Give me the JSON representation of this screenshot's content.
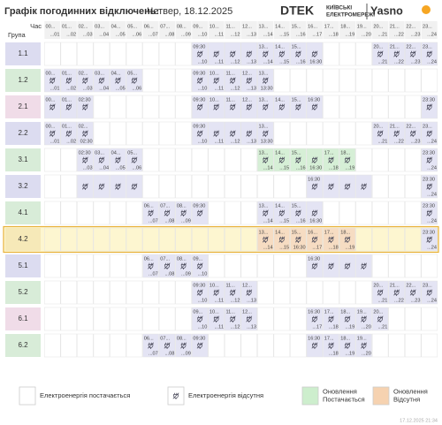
{
  "header": {
    "title": "Графік погодинних відключень:",
    "date": "Четвер, 18.12.2025",
    "brand": "DTEK",
    "brand_sub": [
      "КИЇВСЬКІ",
      "ЕЛЕКТРОМЕРЕЖІ"
    ],
    "brand2": "Yasno"
  },
  "table": {
    "corner_top": "Час",
    "corner_bottom": "Група",
    "kinds": {
      "off": "#e4e4f4",
      "on-upd": "#d6efd6",
      "off-upd": "#f6dcc2"
    },
    "hours": [
      [
        "00...",
        "...01"
      ],
      [
        "01...",
        "...02"
      ],
      [
        "02...",
        "...03"
      ],
      [
        "03...",
        "...04"
      ],
      [
        "04...",
        "...05"
      ],
      [
        "05...",
        "...06"
      ],
      [
        "06...",
        "...07"
      ],
      [
        "07...",
        "...08"
      ],
      [
        "08...",
        "...09"
      ],
      [
        "09...",
        "...10"
      ],
      [
        "10...",
        "...11"
      ],
      [
        "11...",
        "...12"
      ],
      [
        "12...",
        "...13"
      ],
      [
        "13...",
        "...14"
      ],
      [
        "14...",
        "...15"
      ],
      [
        "15...",
        "...16"
      ],
      [
        "16...",
        "...17"
      ],
      [
        "17...",
        "...18"
      ],
      [
        "18...",
        "...19"
      ],
      [
        "19...",
        "...20"
      ],
      [
        "20...",
        "...21"
      ],
      [
        "21...",
        "...22"
      ],
      [
        "22...",
        "...23"
      ],
      [
        "23...",
        "...24"
      ]
    ],
    "rows": [
      {
        "group": "1.1",
        "color": "#dcdcf0",
        "cells": {
          "9": {
            "t": "09:30",
            "b": "...10",
            "k": "off"
          },
          "10": {
            "b": "...11",
            "k": "off"
          },
          "11": {
            "b": "...12",
            "k": "off"
          },
          "12": {
            "b": "...13",
            "k": "off"
          },
          "13": {
            "t": "13...",
            "b": "...14",
            "k": "off"
          },
          "14": {
            "t": "14...",
            "b": "...15",
            "k": "off"
          },
          "15": {
            "t": "15...",
            "b": "...16",
            "k": "off"
          },
          "16": {
            "b": "16:30",
            "k": "off"
          },
          "20": {
            "t": "20...",
            "b": "...21",
            "k": "off"
          },
          "21": {
            "t": "21...",
            "b": "...22",
            "k": "off"
          },
          "22": {
            "t": "22...",
            "b": "...23",
            "k": "off"
          },
          "23": {
            "t": "23...",
            "b": "...24",
            "k": "off"
          }
        }
      },
      {
        "group": "1.2",
        "color": "#d8ecd8",
        "cells": {
          "0": {
            "t": "00...",
            "b": "...01",
            "k": "off"
          },
          "1": {
            "t": "01...",
            "b": "...02",
            "k": "off"
          },
          "2": {
            "t": "02...",
            "b": "...03",
            "k": "off"
          },
          "3": {
            "t": "03...",
            "b": "...04",
            "k": "off"
          },
          "4": {
            "t": "04...",
            "b": "...05",
            "k": "off"
          },
          "5": {
            "t": "05...",
            "b": "...06",
            "k": "off"
          },
          "9": {
            "t": "09:30",
            "b": "...10",
            "k": "off"
          },
          "10": {
            "t": "10...",
            "b": "...11",
            "k": "off"
          },
          "11": {
            "t": "11...",
            "b": "...12",
            "k": "off"
          },
          "12": {
            "t": "12...",
            "b": "...13",
            "k": "off"
          },
          "13": {
            "t": "13...",
            "b": "13:30",
            "k": "off"
          }
        }
      },
      {
        "group": "2.1",
        "color": "#f0dce8",
        "cells": {
          "0": {
            "t": "00...",
            "k": "off"
          },
          "1": {
            "t": "01...",
            "k": "off"
          },
          "2": {
            "t": "02:30",
            "k": "off"
          },
          "9": {
            "t": "09:30",
            "k": "off"
          },
          "10": {
            "t": "10...",
            "k": "off"
          },
          "11": {
            "t": "11...",
            "k": "off"
          },
          "12": {
            "t": "12...",
            "k": "off"
          },
          "13": {
            "t": "13...",
            "k": "off"
          },
          "14": {
            "t": "14...",
            "k": "off"
          },
          "15": {
            "t": "15...",
            "k": "off"
          },
          "16": {
            "t": "16:30",
            "k": "off"
          },
          "23": {
            "t": "23:30",
            "k": "off"
          }
        }
      },
      {
        "group": "2.2",
        "color": "#dcdcf0",
        "cells": {
          "0": {
            "t": "00...",
            "b": "...01",
            "k": "off"
          },
          "1": {
            "t": "01...",
            "b": "...02",
            "k": "off"
          },
          "2": {
            "t": "02...",
            "b": "02:30",
            "k": "off"
          },
          "9": {
            "t": "09:30",
            "b": "...10",
            "k": "off"
          },
          "10": {
            "b": "...11",
            "k": "off"
          },
          "11": {
            "b": "...12",
            "k": "off"
          },
          "12": {
            "b": "...13",
            "k": "off"
          },
          "13": {
            "t": "13...",
            "b": "13:30",
            "k": "off"
          },
          "20": {
            "t": "20...",
            "b": "...21",
            "k": "off"
          },
          "21": {
            "t": "21...",
            "b": "...22",
            "k": "off"
          },
          "22": {
            "t": "22...",
            "b": "...23",
            "k": "off"
          },
          "23": {
            "t": "23...",
            "b": "...24",
            "k": "off"
          }
        }
      },
      {
        "group": "3.1",
        "color": "#d8ecd8",
        "cells": {
          "2": {
            "t": "02:30",
            "b": "...03",
            "k": "off"
          },
          "3": {
            "t": "03...",
            "b": "...04",
            "k": "off"
          },
          "4": {
            "t": "04...",
            "b": "...05",
            "k": "off"
          },
          "5": {
            "t": "05...",
            "b": "...06",
            "k": "off"
          },
          "13": {
            "t": "13...",
            "b": "...14",
            "k": "on-upd"
          },
          "14": {
            "t": "14...",
            "b": "...15",
            "k": "on-upd"
          },
          "15": {
            "t": "15...",
            "b": "...16",
            "k": "on-upd"
          },
          "16": {
            "b": "16:30",
            "k": "on-upd"
          },
          "17": {
            "t": "17...",
            "b": "...18",
            "k": "on-upd"
          },
          "18": {
            "t": "18...",
            "b": "...19",
            "k": "on-upd"
          },
          "23": {
            "t": "23:30",
            "b": "...24",
            "k": "off"
          }
        }
      },
      {
        "group": "3.2",
        "color": "#dcdcf0",
        "cells": {
          "2": {
            "k": "off"
          },
          "3": {
            "k": "off"
          },
          "4": {
            "k": "off"
          },
          "5": {
            "k": "off"
          },
          "16": {
            "t": "16:30",
            "k": "off"
          },
          "17": {
            "k": "off"
          },
          "18": {
            "k": "off"
          },
          "19": {
            "k": "off"
          },
          "23": {
            "t": "23:30",
            "b": "...24",
            "k": "off"
          }
        }
      },
      {
        "group": "4.1",
        "color": "#d8ecd8",
        "cells": {
          "6": {
            "t": "06...",
            "b": "...07",
            "k": "off"
          },
          "7": {
            "t": "07...",
            "b": "...08",
            "k": "off"
          },
          "8": {
            "t": "08...",
            "b": "...09",
            "k": "off"
          },
          "9": {
            "t": "09:30",
            "k": "off"
          },
          "13": {
            "t": "13...",
            "b": "...14",
            "k": "off"
          },
          "14": {
            "t": "14...",
            "b": "...15",
            "k": "off"
          },
          "15": {
            "t": "15...",
            "b": "...16",
            "k": "off"
          },
          "16": {
            "b": "16:30",
            "k": "off"
          },
          "23": {
            "t": "23:30",
            "b": "...24",
            "k": "off"
          }
        }
      },
      {
        "group": "4.2",
        "color": "#f6e9b8",
        "selected": true,
        "cells": {
          "13": {
            "t": "13...",
            "b": "...14",
            "k": "off-upd"
          },
          "14": {
            "t": "14...",
            "b": "...15",
            "k": "off-upd"
          },
          "15": {
            "t": "15...",
            "b": "16:30",
            "k": "off-upd"
          },
          "16": {
            "t": "16...",
            "b": "...17",
            "k": "off-upd"
          },
          "17": {
            "t": "17...",
            "b": "...18",
            "k": "off-upd"
          },
          "18": {
            "t": "18...",
            "b": "...19",
            "k": "off-upd"
          },
          "23": {
            "t": "23:30",
            "b": "...24",
            "k": "off"
          }
        }
      },
      {
        "group": "5.1",
        "color": "#dcdcf0",
        "cells": {
          "6": {
            "t": "06...",
            "b": "...07",
            "k": "off"
          },
          "7": {
            "t": "07...",
            "b": "...08",
            "k": "off"
          },
          "8": {
            "t": "08...",
            "b": "...09",
            "k": "off"
          },
          "9": {
            "t": "09...",
            "b": "...10",
            "k": "off"
          },
          "16": {
            "t": "16:30",
            "k": "off"
          },
          "17": {
            "k": "off"
          },
          "18": {
            "k": "off"
          },
          "19": {
            "k": "off"
          }
        }
      },
      {
        "group": "5.2",
        "color": "#d8ecd8",
        "cells": {
          "9": {
            "t": "09:30",
            "b": "...10",
            "k": "off"
          },
          "10": {
            "t": "10...",
            "b": "...11",
            "k": "off"
          },
          "11": {
            "t": "11...",
            "b": "...12",
            "k": "off"
          },
          "12": {
            "t": "12...",
            "b": "...13",
            "k": "off"
          },
          "20": {
            "t": "20...",
            "b": "...21",
            "k": "off"
          },
          "21": {
            "t": "21...",
            "b": "...22",
            "k": "off"
          },
          "22": {
            "t": "22...",
            "b": "...23",
            "k": "off"
          },
          "23": {
            "t": "23...",
            "b": "...24",
            "k": "off"
          }
        }
      },
      {
        "group": "6.1",
        "color": "#f0dce8",
        "cells": {
          "9": {
            "t": "09...",
            "b": "...10",
            "k": "off"
          },
          "10": {
            "t": "10...",
            "b": "...11",
            "k": "off"
          },
          "11": {
            "t": "11...",
            "b": "...12",
            "k": "off"
          },
          "12": {
            "t": "12...",
            "b": "...13",
            "k": "off"
          },
          "16": {
            "t": "16:30",
            "b": "...17",
            "k": "off"
          },
          "17": {
            "t": "17...",
            "b": "...18",
            "k": "off"
          },
          "18": {
            "t": "18...",
            "b": "...19",
            "k": "off"
          },
          "19": {
            "t": "19...",
            "b": "...20",
            "k": "off"
          },
          "20": {
            "t": "20...",
            "b": "...21",
            "k": "off"
          }
        }
      },
      {
        "group": "6.2",
        "color": "#d8ecd8",
        "cells": {
          "6": {
            "t": "06...",
            "b": "...07",
            "k": "off"
          },
          "7": {
            "t": "07...",
            "b": "...08",
            "k": "off"
          },
          "8": {
            "t": "08...",
            "b": "...09",
            "k": "off"
          },
          "9": {
            "t": "09:30",
            "k": "off"
          },
          "16": {
            "t": "16:30",
            "k": "off"
          },
          "17": {
            "t": "17...",
            "b": "...18",
            "k": "off"
          },
          "18": {
            "t": "18...",
            "b": "...19",
            "k": "off"
          },
          "19": {
            "t": "19...",
            "b": "...20",
            "k": "off"
          }
        }
      }
    ]
  },
  "legend": [
    {
      "label": [
        "Електроенергія постачається"
      ],
      "color": "#ffffff"
    },
    {
      "label": [
        "Електроенергія відсутня"
      ],
      "color": "#ffffff",
      "icon": true
    },
    {
      "label": [
        "Оновлення",
        "Постачається"
      ],
      "color": "#cdeecd"
    },
    {
      "label": [
        "Оновлення",
        "Відсутня"
      ],
      "color": "#f6d2b0"
    }
  ],
  "footer": "17.12.2025  21:34"
}
